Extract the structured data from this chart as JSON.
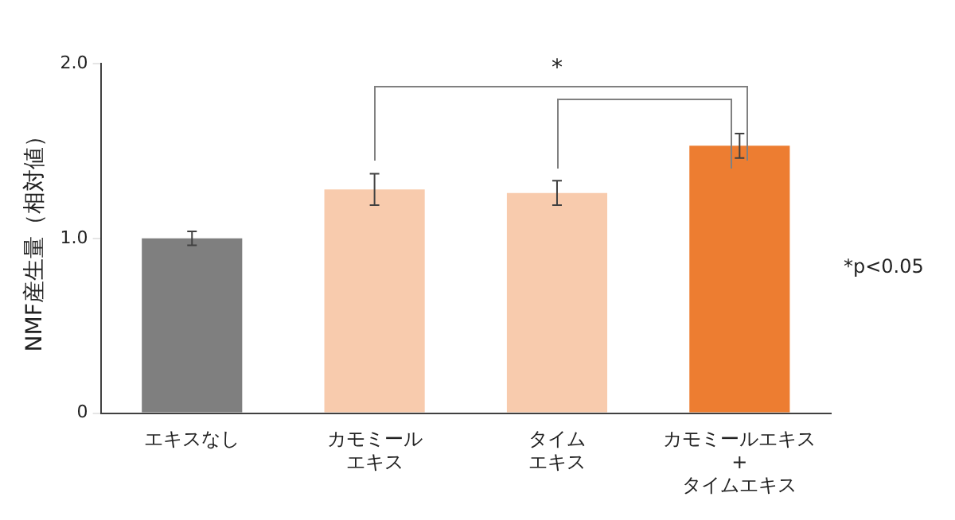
{
  "chart_data": {
    "type": "bar",
    "ylabel": "NMF産生量（相対値）",
    "categories": [
      "エキスなし",
      "カモミールエキス",
      "タイムエキス",
      "カモミールエキス\n+\nタイムエキス"
    ],
    "values": [
      1.0,
      1.28,
      1.26,
      1.53
    ],
    "colors": [
      "#7f7f7f",
      "#f8cbad",
      "#f8cbad",
      "#ed7d31"
    ],
    "errors": [
      0.04,
      0.09,
      0.07,
      0.07
    ],
    "ylim": [
      0,
      2.0
    ],
    "yticks": [
      0,
      {
        "value": 1,
        "label": "1.0"
      },
      {
        "value": 2,
        "label": "2.0"
      }
    ],
    "grid": false,
    "legend": false,
    "annotations": [
      "*",
      "*p<0.05"
    ]
  }
}
